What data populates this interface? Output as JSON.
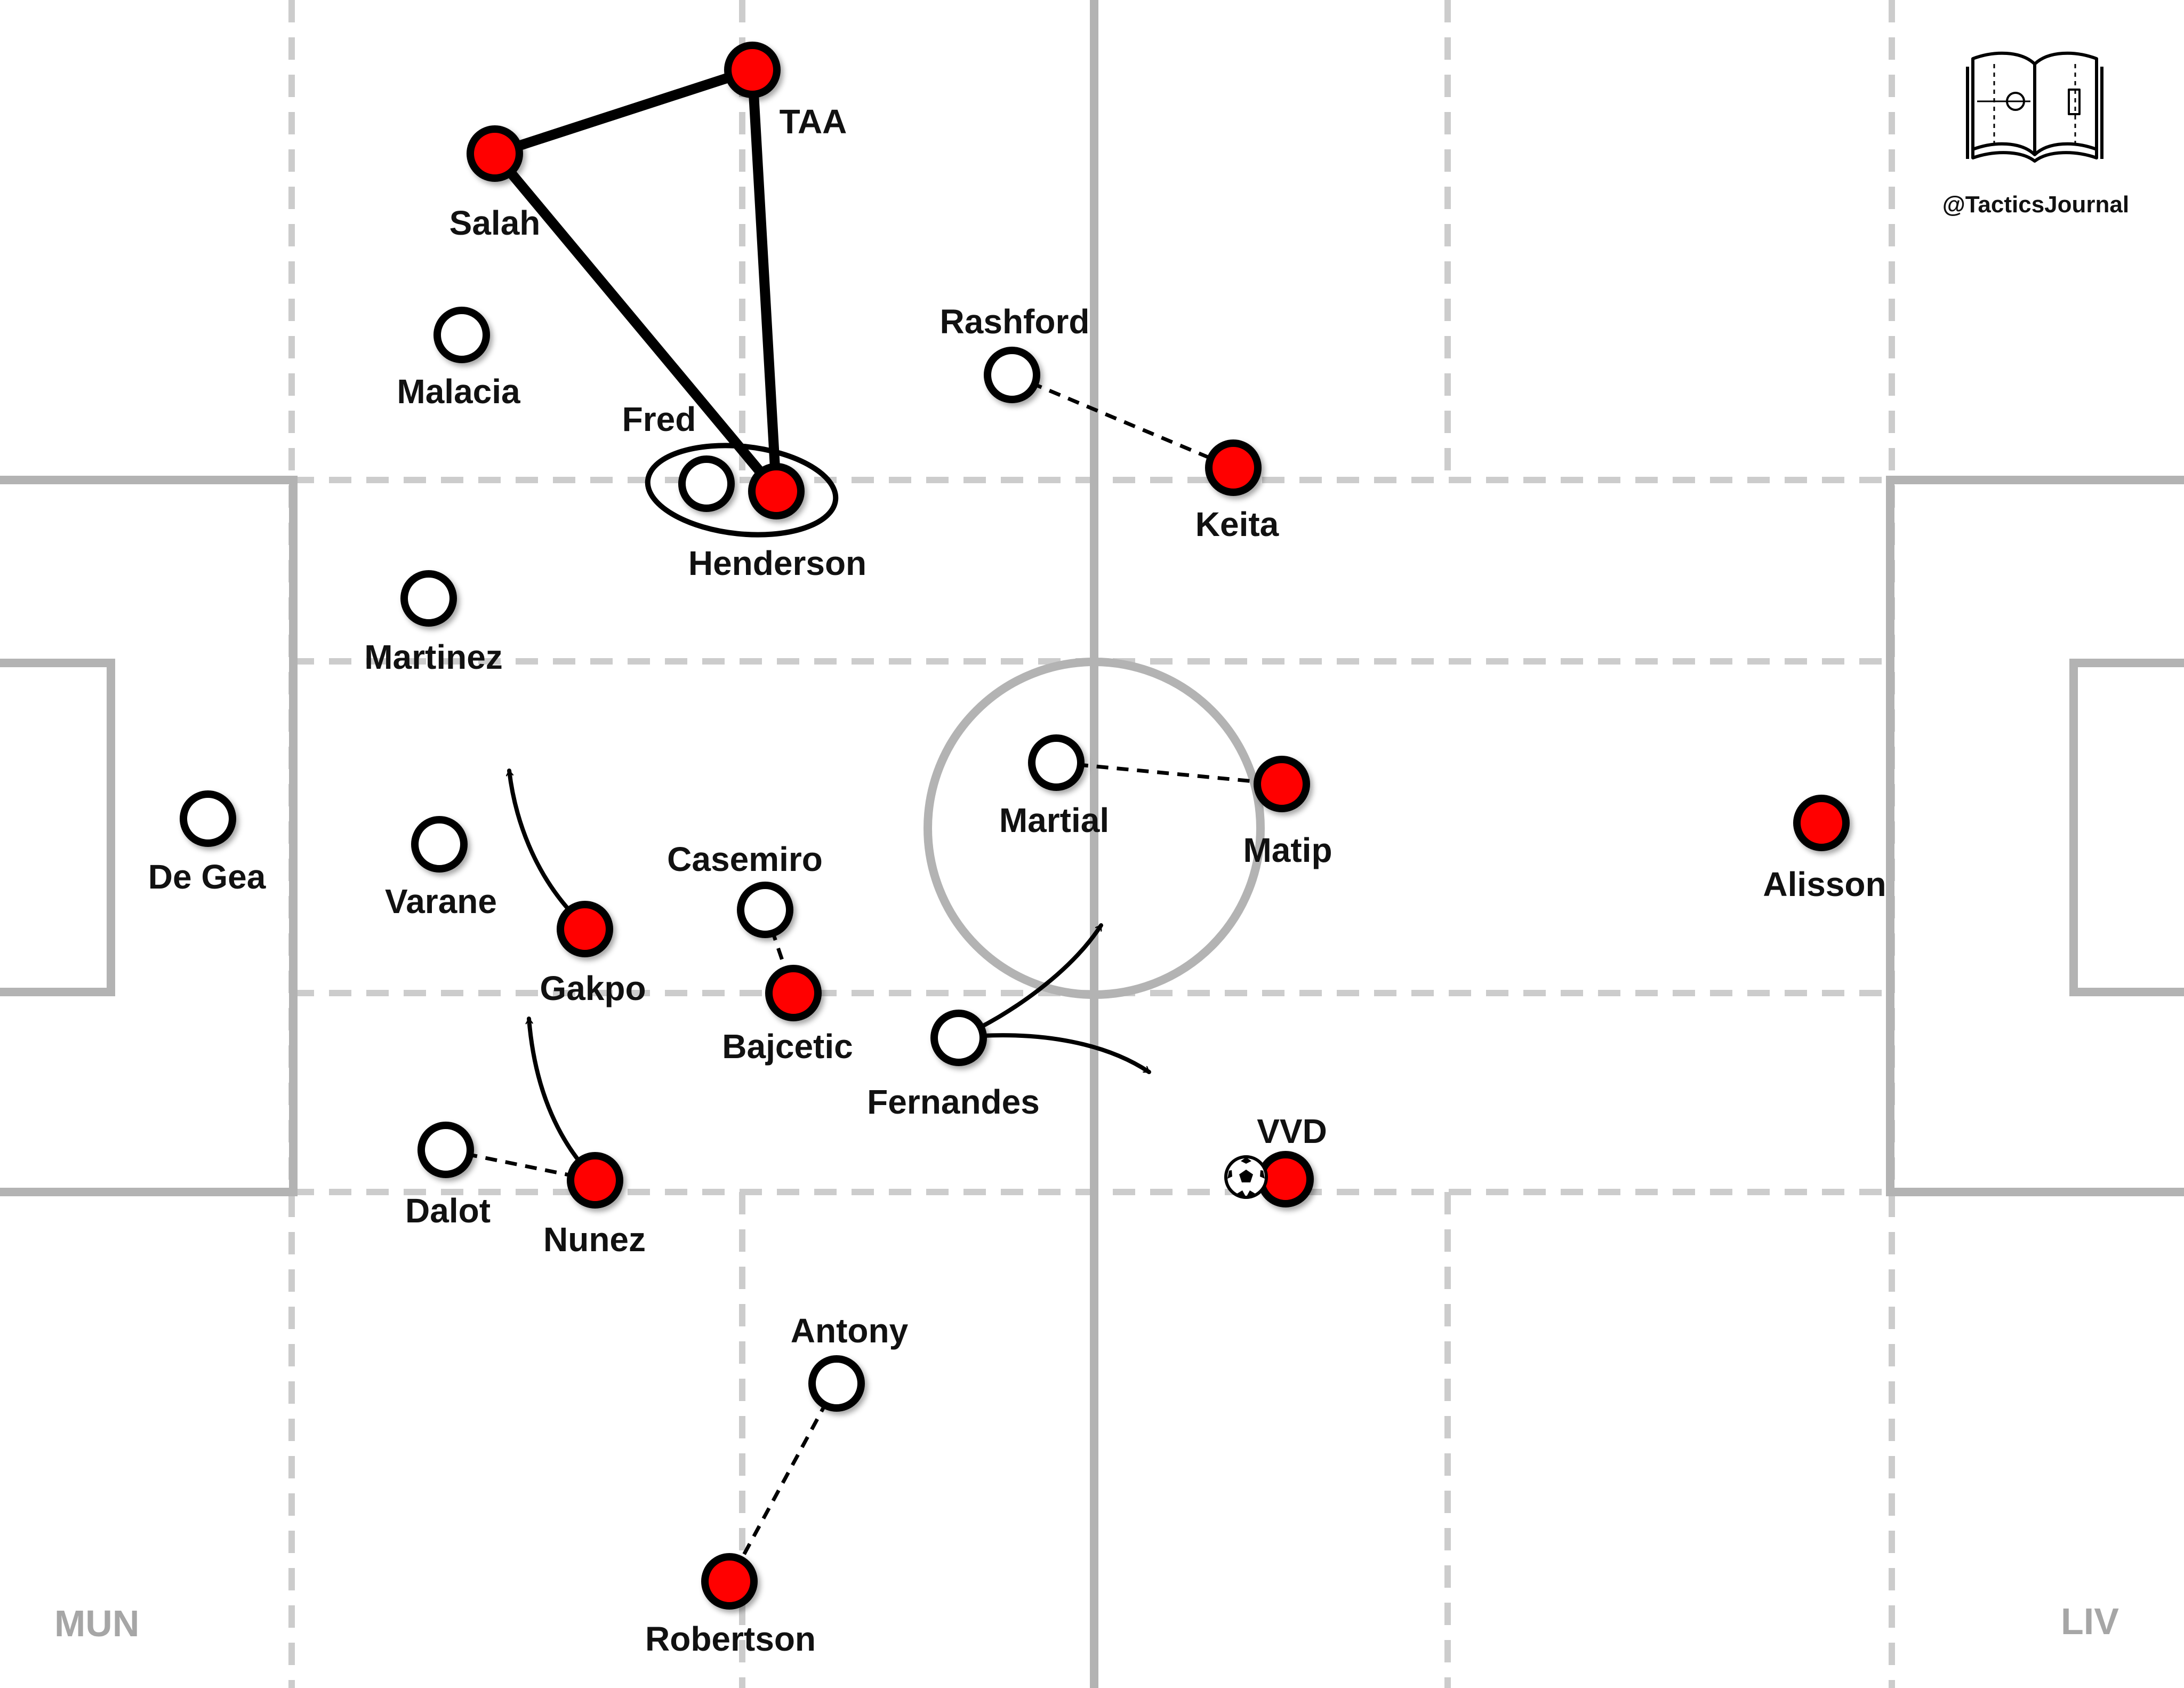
{
  "branding": {
    "handle": "@TacticsJournal",
    "logo_icon": "open-book-pitch-icon"
  },
  "teams": {
    "home": {
      "label": "MUN",
      "marker_color": "#ffffff"
    },
    "away": {
      "label": "LIV",
      "marker_color": "#ff0000"
    }
  },
  "players": {
    "salah": "Salah",
    "taa": "TAA",
    "malacia": "Malacia",
    "fred": "Fred",
    "henderson": "Henderson",
    "rashford": "Rashford",
    "keita": "Keita",
    "martinez": "Martinez",
    "martial": "Martial",
    "matip": "Matip",
    "de_gea": "De Gea",
    "varane": "Varane",
    "gakpo": "Gakpo",
    "casemiro": "Casemiro",
    "bajcetic": "Bajcetic",
    "fernandes": "Fernandes",
    "alisson": "Alisson",
    "vvd": "VVD",
    "dalot": "Dalot",
    "nunez": "Nunez",
    "antony": "Antony",
    "robertson": "Robertson"
  },
  "colors": {
    "pitch_line": "#b3b3b3",
    "zone_line": "#cccccc",
    "marker_outline": "#000000"
  }
}
